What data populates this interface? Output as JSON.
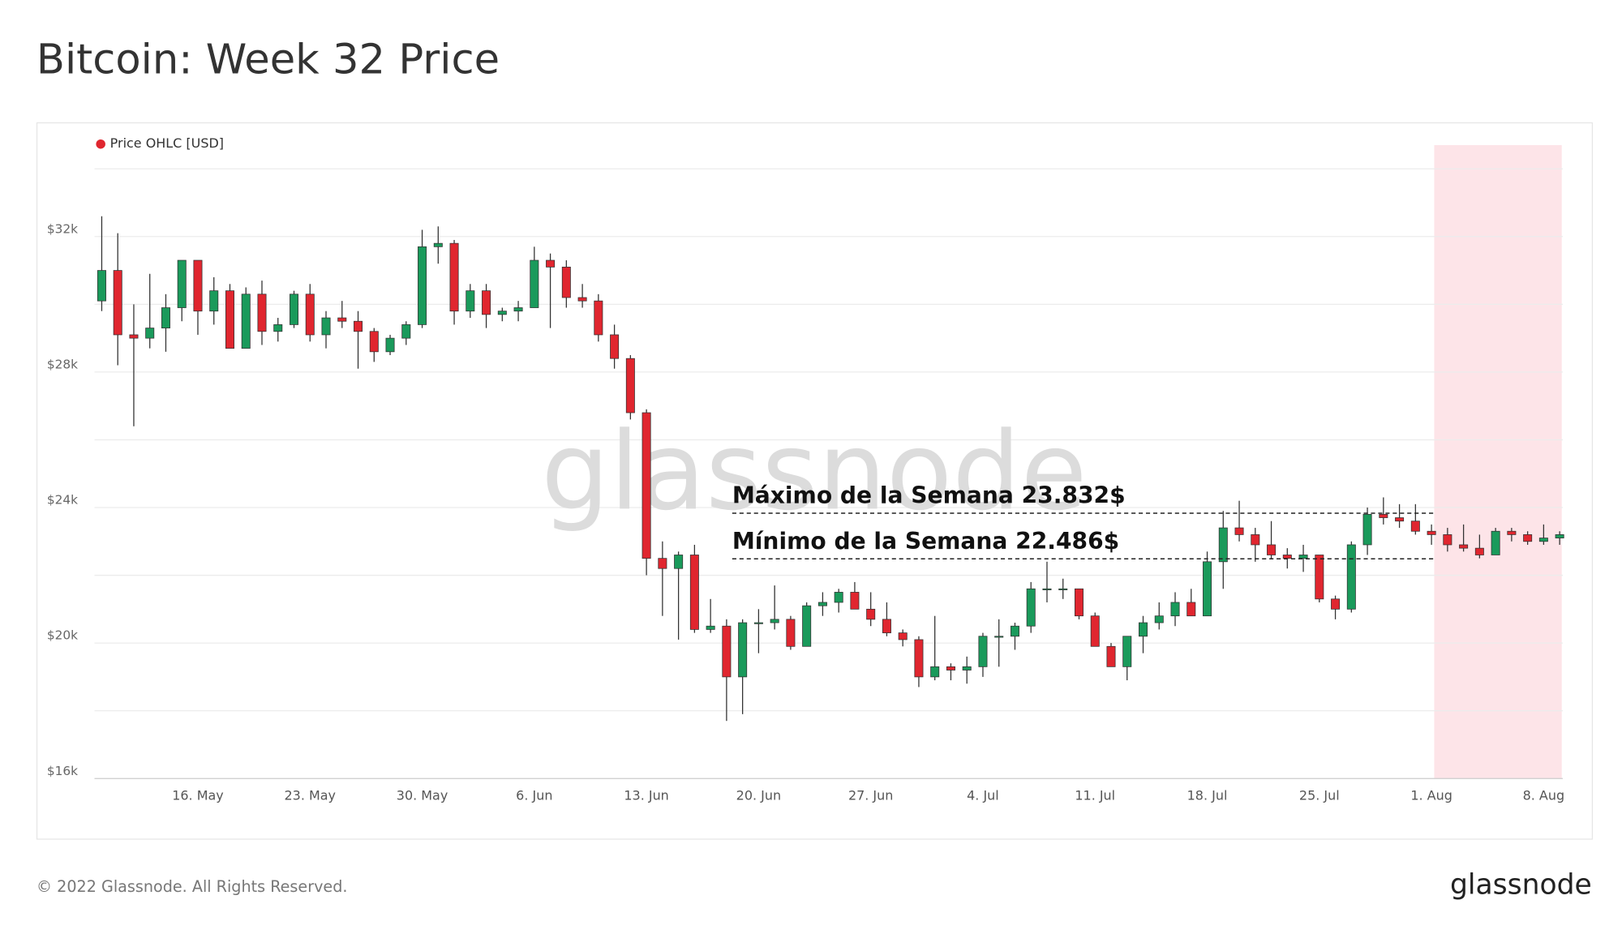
{
  "chart_data": {
    "type": "candlestick",
    "title": "Bitcoin: Week 32 Price",
    "legend": "Price OHLC [USD]",
    "watermark": "glassnode",
    "footer": "© 2022 Glassnode. All Rights Reserved.",
    "logo": "glassnode",
    "up_color": "#1a9a5b",
    "down_color": "#e0262f",
    "legend_color": "#e0262f",
    "categories": [
      null,
      null,
      null,
      null,
      null,
      null,
      "16. May",
      null,
      null,
      null,
      null,
      null,
      null,
      "23. May",
      null,
      null,
      null,
      null,
      null,
      null,
      "30. May",
      null,
      null,
      null,
      null,
      null,
      null,
      "6. Jun",
      null,
      null,
      null,
      null,
      null,
      null,
      "13. Jun",
      null,
      null,
      null,
      null,
      null,
      null,
      "20. Jun",
      null,
      null,
      null,
      null,
      null,
      null,
      "27. Jun",
      null,
      null,
      null,
      null,
      null,
      null,
      "4. Jul",
      null,
      null,
      null,
      null,
      null,
      null,
      "11. Jul",
      null,
      null,
      null,
      null,
      null,
      null,
      "18. Jul",
      null,
      null,
      null,
      null,
      null,
      null,
      "25. Jul",
      null,
      null,
      null,
      null,
      null,
      null,
      "1. Aug",
      null,
      null,
      null,
      null,
      null,
      null,
      "8. Aug",
      null
    ],
    "ohlc": [
      [
        30100,
        32600,
        29800,
        31000
      ],
      [
        31000,
        32100,
        28200,
        29100
      ],
      [
        29100,
        30000,
        26400,
        29000
      ],
      [
        29000,
        30900,
        28700,
        29300
      ],
      [
        29300,
        30300,
        28600,
        29900
      ],
      [
        29900,
        31300,
        29500,
        31300
      ],
      [
        31300,
        31300,
        29100,
        29800
      ],
      [
        29800,
        30800,
        29400,
        30400
      ],
      [
        30400,
        30600,
        28700,
        28700
      ],
      [
        28700,
        30500,
        28700,
        30300
      ],
      [
        30300,
        30700,
        28800,
        29200
      ],
      [
        29200,
        29600,
        28900,
        29400
      ],
      [
        29400,
        30400,
        29300,
        30300
      ],
      [
        30300,
        30600,
        28900,
        29100
      ],
      [
        29100,
        29800,
        28700,
        29600
      ],
      [
        29600,
        30100,
        29300,
        29500
      ],
      [
        29500,
        29800,
        28100,
        29200
      ],
      [
        29200,
        29300,
        28300,
        28600
      ],
      [
        28600,
        29100,
        28500,
        29000
      ],
      [
        29000,
        29500,
        28800,
        29400
      ],
      [
        29400,
        32200,
        29300,
        31700
      ],
      [
        31700,
        32300,
        31200,
        31800
      ],
      [
        31800,
        31900,
        29400,
        29800
      ],
      [
        29800,
        30600,
        29600,
        30400
      ],
      [
        30400,
        30600,
        29300,
        29700
      ],
      [
        29700,
        29900,
        29500,
        29800
      ],
      [
        29800,
        30100,
        29500,
        29900
      ],
      [
        29900,
        31700,
        29900,
        31300
      ],
      [
        31300,
        31500,
        29300,
        31100
      ],
      [
        31100,
        31300,
        29900,
        30200
      ],
      [
        30200,
        30600,
        29900,
        30100
      ],
      [
        30100,
        30300,
        28900,
        29100
      ],
      [
        29100,
        29400,
        28100,
        28400
      ],
      [
        28400,
        28500,
        26600,
        26800
      ],
      [
        26800,
        26900,
        22000,
        22500
      ],
      [
        22500,
        23000,
        20800,
        22200
      ],
      [
        22200,
        22700,
        20100,
        22600
      ],
      [
        22600,
        22900,
        20300,
        20400
      ],
      [
        20400,
        21300,
        20300,
        20500
      ],
      [
        20500,
        20700,
        17700,
        19000
      ],
      [
        19000,
        20700,
        17900,
        20600
      ],
      [
        20600,
        21000,
        19700,
        20600
      ],
      [
        20600,
        21700,
        20400,
        20700
      ],
      [
        20700,
        20800,
        19800,
        19900
      ],
      [
        19900,
        21200,
        19900,
        21100
      ],
      [
        21100,
        21500,
        20800,
        21200
      ],
      [
        21200,
        21600,
        20900,
        21500
      ],
      [
        21500,
        21800,
        21000,
        21000
      ],
      [
        21000,
        21500,
        20500,
        20700
      ],
      [
        20700,
        21200,
        20200,
        20300
      ],
      [
        20300,
        20400,
        19900,
        20100
      ],
      [
        20100,
        20200,
        18700,
        19000
      ],
      [
        19000,
        20800,
        18900,
        19300
      ],
      [
        19300,
        19400,
        18900,
        19200
      ],
      [
        19200,
        19600,
        18800,
        19300
      ],
      [
        19300,
        20300,
        19000,
        20200
      ],
      [
        20200,
        20700,
        19300,
        20200
      ],
      [
        20200,
        20600,
        19800,
        20500
      ],
      [
        20500,
        21800,
        20300,
        21600
      ],
      [
        21600,
        22400,
        21200,
        21600
      ],
      [
        21600,
        21900,
        21300,
        21600
      ],
      [
        21600,
        21600,
        20700,
        20800
      ],
      [
        20800,
        20900,
        19900,
        19900
      ],
      [
        19900,
        20000,
        19300,
        19300
      ],
      [
        19300,
        20100,
        18900,
        20200
      ],
      [
        20200,
        20800,
        19700,
        20600
      ],
      [
        20600,
        21200,
        20400,
        20800
      ],
      [
        20800,
        21500,
        20500,
        21200
      ],
      [
        21200,
        21600,
        20800,
        20800
      ],
      [
        20800,
        22700,
        20800,
        22400
      ],
      [
        22400,
        23900,
        21600,
        23400
      ],
      [
        23400,
        24200,
        23000,
        23200
      ],
      [
        23200,
        23400,
        22400,
        22900
      ],
      [
        22900,
        23600,
        22500,
        22600
      ],
      [
        22600,
        22800,
        22200,
        22500
      ],
      [
        22500,
        22900,
        22100,
        22600
      ],
      [
        22600,
        22600,
        21200,
        21300
      ],
      [
        21300,
        21400,
        20700,
        21000
      ],
      [
        21000,
        23000,
        20900,
        22900
      ],
      [
        22900,
        24000,
        22600,
        23800
      ],
      [
        23800,
        24300,
        23500,
        23700
      ],
      [
        23700,
        24100,
        23400,
        23600
      ],
      [
        23600,
        24100,
        23200,
        23300
      ],
      [
        23300,
        23500,
        22900,
        23200
      ],
      [
        23200,
        23400,
        22700,
        22900
      ],
      [
        22900,
        23500,
        22700,
        22800
      ],
      [
        22800,
        23200,
        22500,
        22600
      ],
      [
        22600,
        23400,
        22600,
        23300
      ],
      [
        23300,
        23400,
        23000,
        23200
      ],
      [
        23200,
        23300,
        22900,
        23000
      ],
      [
        23000,
        23500,
        22900,
        23100
      ],
      [
        23100,
        23300,
        22900,
        23200
      ]
    ],
    "ylim": [
      16000,
      34700
    ],
    "yticks": [
      {
        "value": 16000,
        "label": "$16k"
      },
      {
        "value": 20000,
        "label": "$20k"
      },
      {
        "value": 24000,
        "label": "$24k"
      },
      {
        "value": 28000,
        "label": "$28k"
      },
      {
        "value": 32000,
        "label": "$32k"
      }
    ],
    "minor_grid": [
      18000,
      22000,
      26000,
      30000,
      34000
    ],
    "annotations": [
      {
        "text": "Máximo de la Semana  23.832$",
        "value": 23832
      },
      {
        "text": "Mínimo de la Semana  22.486$",
        "value": 22486
      }
    ]
  }
}
